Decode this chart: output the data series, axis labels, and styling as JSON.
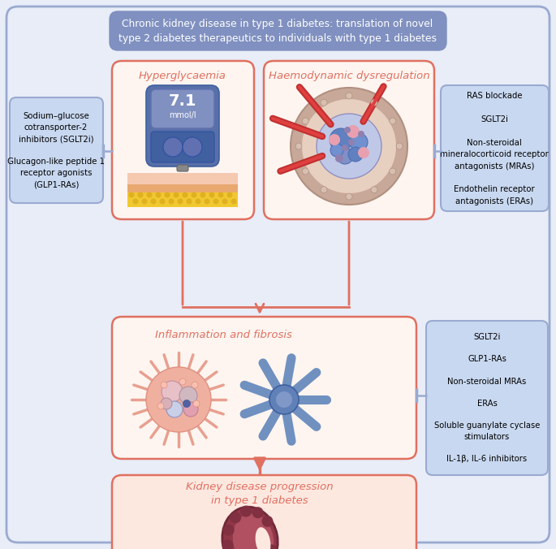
{
  "title": "Chronic kidney disease in type 1 diabetes: translation of novel\ntype 2 diabetes therapeutics to individuals with type 1 diabetes",
  "title_box_color": "#8090C0",
  "title_text_color": "white",
  "bg_color": "#E8EDF8",
  "outer_border_color": "#9AAAD0",
  "panel_bg": "#FEF5F0",
  "panel_border": "#E07060",
  "side_box_bg": "#C8D8F0",
  "side_box_border": "#9AAAD0",
  "arrow_color": "#E07060",
  "tbar_color": "#9AAAD0",
  "text_color_panel": "#E07060",
  "left_box_text": "Sodium–glucose\ncotransporter-2\ninhibitors (SGLT2i)\n\nGlucagon-like peptide 1\nreceptor agonists\n(GLP1-RAs)",
  "right_box1_text": "RAS blockade\n\nSGLT2i\n\nNon-steroidal\nmineralocorticoid receptor\nantagonists (MRAs)\n\nEndothelin receptor\nantagonists (ERAs)",
  "right_box2_text": "SGLT2i\n\nGLP1-RAs\n\nNon-steroidal MRAs\n\nERAs\n\nSoluble guanylate cyclase\nstimulators\n\nIL-1β, IL-6 inhibitors",
  "panel1_title": "Hyperglycaemia",
  "panel2_title": "Haemodynamic dysregulation",
  "panel3_title": "Inflammation and fibrosis",
  "panel4_title": "Kidney disease progression\nin type 1 diabetes"
}
